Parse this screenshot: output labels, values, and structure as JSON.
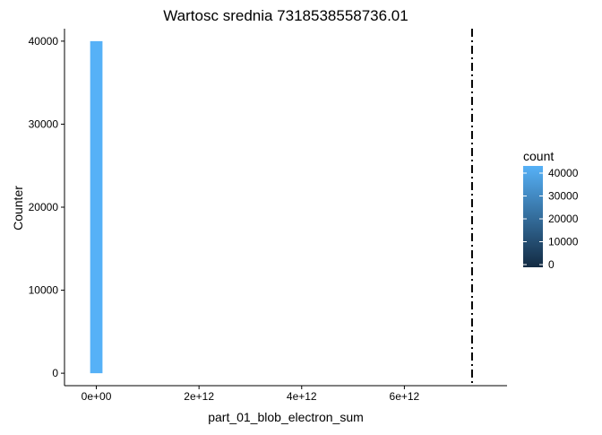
{
  "chart_data": {
    "type": "bar",
    "title": "Wartosc srednia 7318538558736.01",
    "xlabel": "part_01_blob_electron_sum",
    "ylabel": "Counter",
    "xlim": [
      -620000000000,
      8000000000000
    ],
    "ylim": [
      -1500,
      41500
    ],
    "x_ticks": [
      0,
      2000000000000,
      4000000000000,
      6000000000000
    ],
    "x_tick_labels": [
      "0e+00",
      "2e+12",
      "4e+12",
      "6e+12"
    ],
    "y_ticks": [
      0,
      10000,
      20000,
      30000,
      40000
    ],
    "y_tick_labels": [
      "0",
      "10000",
      "20000",
      "30000",
      "40000"
    ],
    "bins": [
      {
        "x_start": -120000000000,
        "x_end": 120000000000,
        "count": 40000
      }
    ],
    "mean_line": {
      "x": 7318538558736.01,
      "style": "dashdot",
      "color": "#000000"
    },
    "legend": {
      "title": "count",
      "position": "right",
      "breaks": [
        0,
        10000,
        20000,
        30000,
        40000
      ],
      "break_labels": [
        "0",
        "10000",
        "20000",
        "30000",
        "40000"
      ],
      "range": [
        0,
        40000
      ],
      "low_color": "#132B43",
      "high_color": "#56B1F7"
    },
    "grid": false
  }
}
